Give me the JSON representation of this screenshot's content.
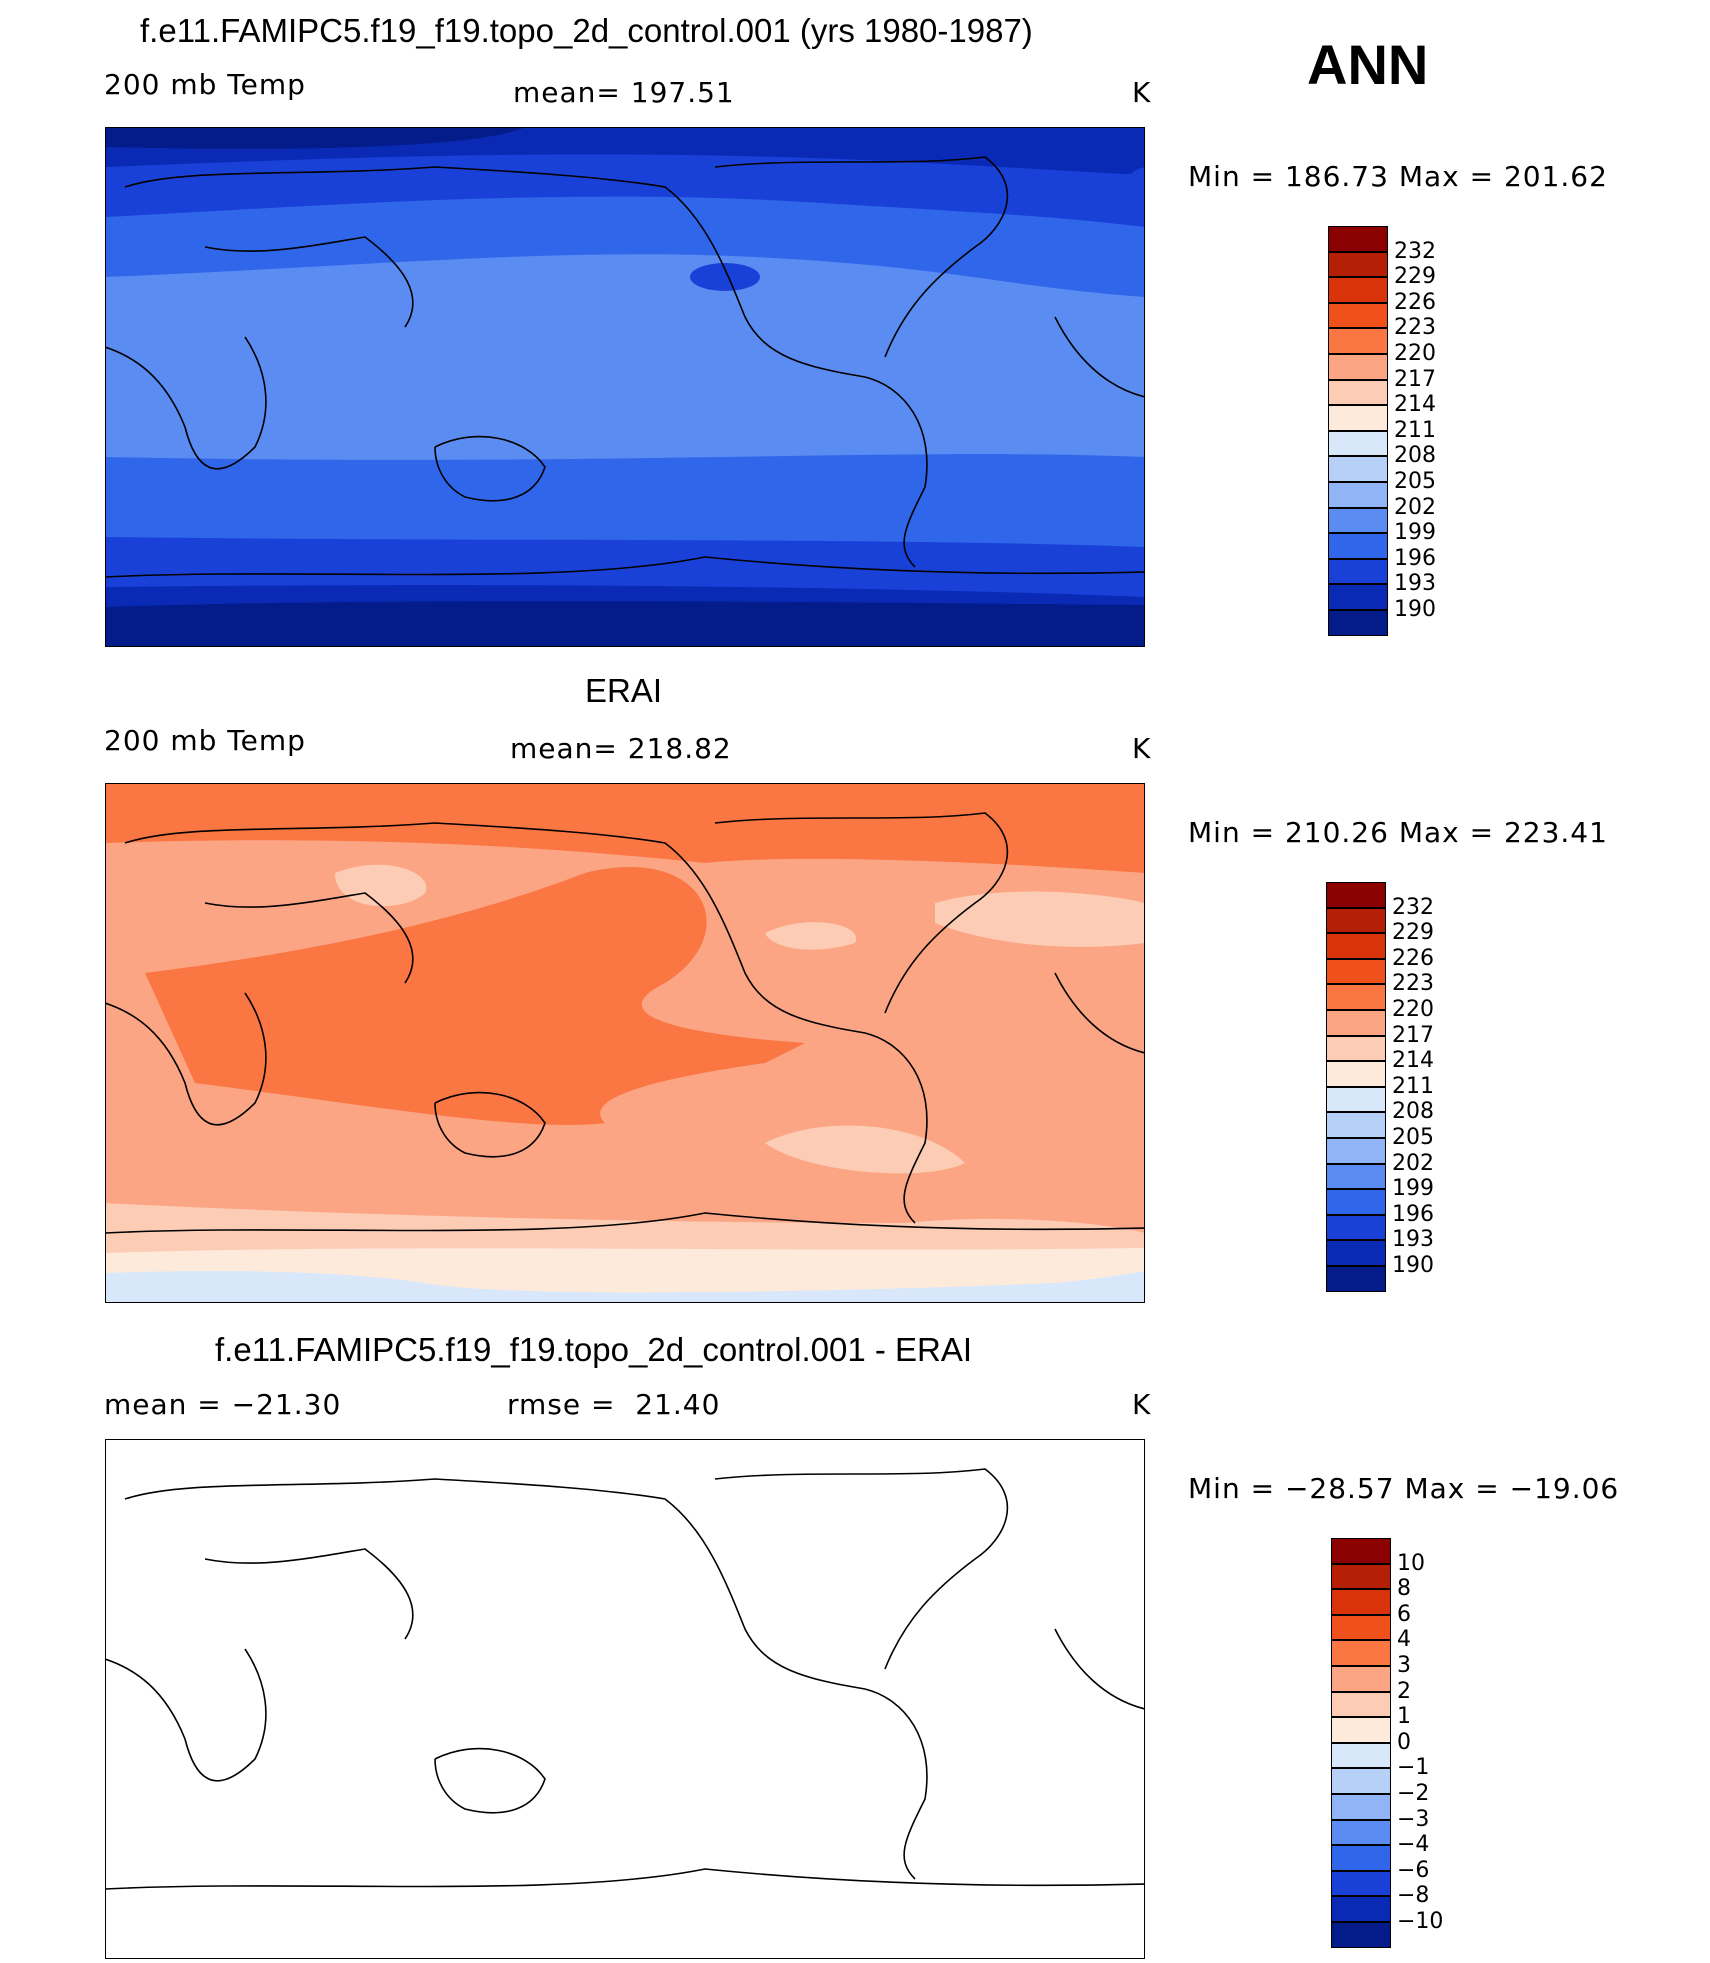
{
  "season": "ANN",
  "panels": [
    {
      "title": "f.e11.FAMIPC5.f19_f19.topo_2d_control.001 (yrs 1980-1987)",
      "left": "200 mb Temp",
      "center": "mean= 197.51",
      "right": "K",
      "minmax": "Min = 186.73 Max = 201.62",
      "field_range": [
        186.73,
        201.62
      ],
      "mean": 197.51
    },
    {
      "title": "ERAI",
      "left": "200 mb Temp",
      "center": "mean= 218.82",
      "right": "K",
      "minmax": "Min = 210.26 Max = 223.41",
      "field_range": [
        210.26,
        223.41
      ],
      "mean": 218.82
    },
    {
      "title": "f.e11.FAMIPC5.f19_f19.topo_2d_control.001 - ERAI",
      "left": "mean = −21.30",
      "center": "rmse =  21.40",
      "right": "K",
      "minmax": "Min = −28.57 Max = −19.06",
      "field_range": [
        -28.57,
        -19.06
      ],
      "mean": -21.3
    }
  ],
  "colorbar_levels": [
    "232",
    "229",
    "226",
    "223",
    "220",
    "217",
    "214",
    "211",
    "208",
    "205",
    "202",
    "199",
    "196",
    "193",
    "190"
  ],
  "diff_levels": [
    "10",
    "8",
    "6",
    "4",
    "3",
    "2",
    "1",
    "0",
    "−1",
    "−2",
    "−3",
    "−4",
    "−6",
    "−8",
    "−10"
  ],
  "colors": [
    "#8b0000",
    "#b51f06",
    "#d9330b",
    "#f0501b",
    "#fa7642",
    "#fba584",
    "#fcccb5",
    "#feeadb",
    "#d8e8fa",
    "#b7d0f8",
    "#91b4f6",
    "#5b8cf1",
    "#3066ea",
    "#1941d8",
    "#0a2ab5",
    "#041c8a"
  ]
}
